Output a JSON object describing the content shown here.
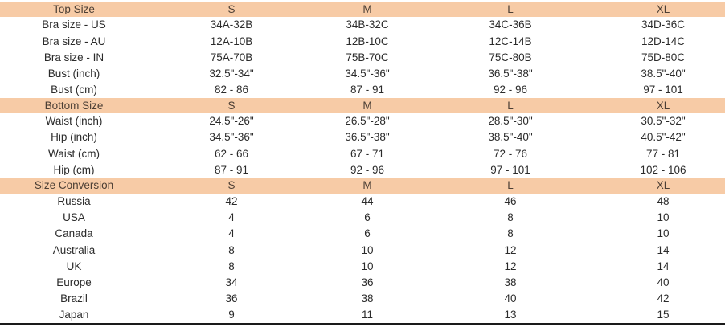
{
  "chart_data": [
    {
      "type": "table",
      "title": "Top Size",
      "columns": [
        "S",
        "M",
        "L",
        "XL"
      ],
      "rows": [
        {
          "label": "Bra size - US",
          "values": [
            "34A-32B",
            "34B-32C",
            "34C-36B",
            "34D-36C"
          ]
        },
        {
          "label": "Bra size - AU",
          "values": [
            "12A-10B",
            "12B-10C",
            "12C-14B",
            "12D-14C"
          ]
        },
        {
          "label": "Bra size - IN",
          "values": [
            "75A-70B",
            "75B-70C",
            "75C-80B",
            "75D-80C"
          ]
        },
        {
          "label": "Bust (inch)",
          "values": [
            "32.5\"-34\"",
            "34.5\"-36\"",
            "36.5\"-38\"",
            "38.5\"-40\""
          ]
        },
        {
          "label": "Bust (cm)",
          "values": [
            "82 - 86",
            "87 - 91",
            "92 - 96",
            "97 - 101"
          ]
        }
      ]
    },
    {
      "type": "table",
      "title": "Bottom Size",
      "columns": [
        "S",
        "M",
        "L",
        "XL"
      ],
      "rows": [
        {
          "label": "Waist (inch)",
          "values": [
            "24.5\"-26\"",
            "26.5\"-28\"",
            "28.5\"-30\"",
            "30.5\"-32\""
          ]
        },
        {
          "label": "Hip (inch)",
          "values": [
            "34.5\"-36\"",
            "36.5\"-38\"",
            "38.5\"-40\"",
            "40.5\"-42\""
          ]
        },
        {
          "label": "Waist (cm)",
          "values": [
            "62 - 66",
            "67 - 71",
            "72 - 76",
            "77 - 81"
          ]
        },
        {
          "label": "Hip (cm)",
          "values": [
            "87 - 91",
            "92 - 96",
            "97 - 101",
            "102 - 106"
          ]
        }
      ]
    },
    {
      "type": "table",
      "title": "Size Conversion",
      "columns": [
        "S",
        "M",
        "L",
        "XL"
      ],
      "rows": [
        {
          "label": "Russia",
          "values": [
            "42",
            "44",
            "46",
            "48"
          ]
        },
        {
          "label": "USA",
          "values": [
            "4",
            "6",
            "8",
            "10"
          ]
        },
        {
          "label": "Canada",
          "values": [
            "4",
            "6",
            "8",
            "10"
          ]
        },
        {
          "label": "Australia",
          "values": [
            "8",
            "10",
            "12",
            "14"
          ]
        },
        {
          "label": "UK",
          "values": [
            "8",
            "10",
            "12",
            "14"
          ]
        },
        {
          "label": "Europe",
          "values": [
            "34",
            "36",
            "38",
            "40"
          ]
        },
        {
          "label": "Brazil",
          "values": [
            "36",
            "38",
            "40",
            "42"
          ]
        },
        {
          "label": "Japan",
          "values": [
            "9",
            "11",
            "13",
            "15"
          ]
        }
      ]
    }
  ],
  "colors": {
    "section_header_bg": "#f7cba6",
    "section_header_text": "#4c3f35",
    "body_text": "#2b2b2b",
    "bottom_border": "#1a1a1a",
    "page_bg": "#ffffff"
  }
}
